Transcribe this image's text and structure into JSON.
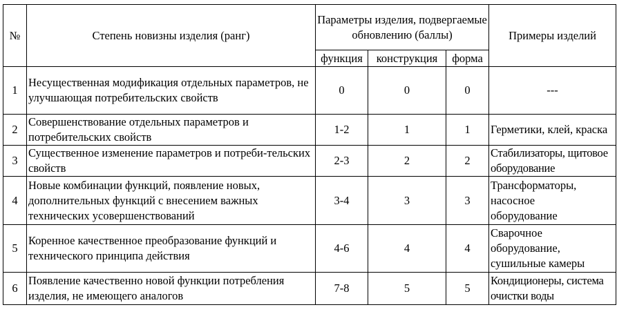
{
  "header": {
    "num": "№",
    "rank": "Степень новизны изделия (ранг)",
    "params_group": "Параметры изделия, подвергаемые обновлению (баллы)",
    "params": [
      "функция",
      "конструкция",
      "форма"
    ],
    "examples": "Примеры изделий"
  },
  "rows": [
    {
      "num": "1",
      "rank": "Несущественная модификация отдельных параметров, не улучшающая потребительских свойств",
      "function": "0",
      "construction": "0",
      "form": "0",
      "examples": "---"
    },
    {
      "num": "2",
      "rank": "Совершенствование отдельных параметров и потребительских свойств",
      "function": "1-2",
      "construction": "1",
      "form": "1",
      "examples": "Герметики, клей, краска"
    },
    {
      "num": "3",
      "rank": "Существенное изменение параметров и потреби-тельских свойств",
      "function": "2-3",
      "construction": "2",
      "form": "2",
      "examples": "Стабилизаторы, щитовое оборудование"
    },
    {
      "num": "4",
      "rank": "Новые комбинации функций, появление новых, дополнительных функций с внесением важных технических усовершенствований",
      "function": "3-4",
      "construction": "3",
      "form": "3",
      "examples": "Трансформаторы, насосное оборудование"
    },
    {
      "num": "5",
      "rank": "Коренное качественное преобразование функций и технического принципа действия",
      "function": "4-6",
      "construction": "4",
      "form": "4",
      "examples": "Сварочное оборудование, сушильные камеры"
    },
    {
      "num": "6",
      "rank": "Появление качественно новой функции потребления изделия, не имеющего аналогов",
      "function": "7-8",
      "construction": "5",
      "form": "5",
      "examples": "Кондиционеры, система очистки воды"
    }
  ]
}
